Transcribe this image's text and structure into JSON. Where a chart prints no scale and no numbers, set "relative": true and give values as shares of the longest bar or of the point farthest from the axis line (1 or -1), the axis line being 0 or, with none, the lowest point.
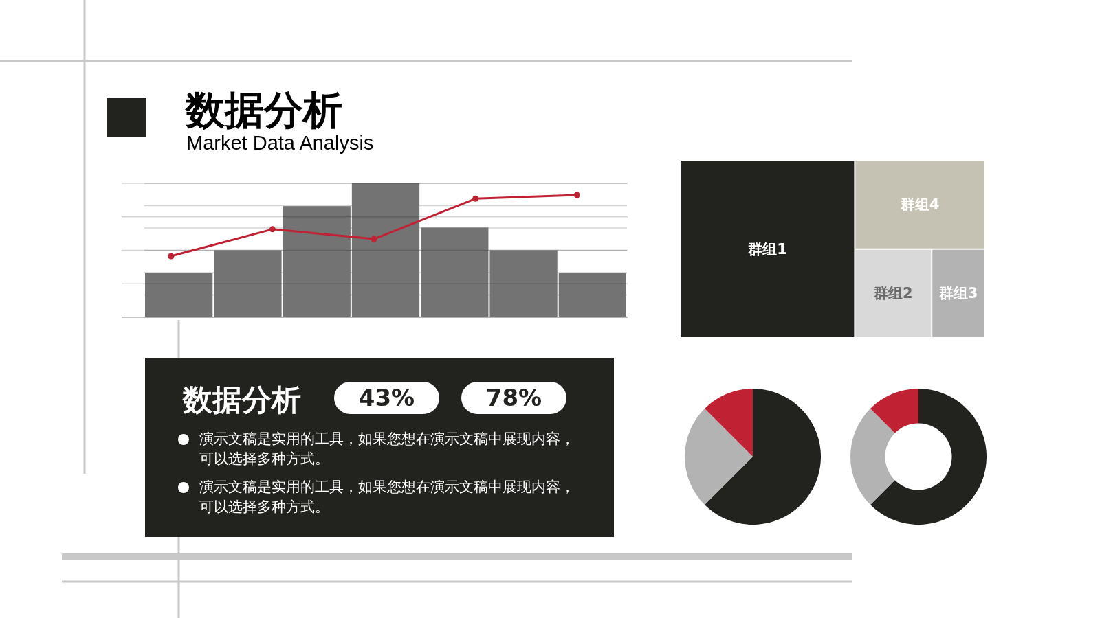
{
  "chart_data": [
    {
      "type": "bar",
      "title": "数据分析",
      "subtitle": "Market Data Analysis",
      "categories": [
        null,
        null,
        null,
        null,
        null,
        null,
        null
      ],
      "relative": true,
      "grid": true,
      "color": "#737373",
      "values": [
        0.33,
        0.5,
        0.83,
        1,
        0.67,
        0.5,
        0.33
      ]
    },
    {
      "type": "line",
      "categories": [
        null,
        null,
        null,
        null,
        null
      ],
      "relative": true,
      "grid": true,
      "marker": "circle",
      "color": "#c02233",
      "values": [
        0.5,
        0.72,
        0.64,
        0.97,
        1
      ]
    },
    {
      "type": "other",
      "categories": [
        "群组1",
        "群组2",
        "群组3",
        "群组4"
      ],
      "colors": [
        "#22221f",
        "#d9d9d9",
        "#b3b3b3",
        "#c6c2b3"
      ]
    },
    {
      "type": "other",
      "title": "数据分析",
      "annotations": [
        "43%",
        "78%",
        "演示文稿是实用的工具，如果您想在演示文稿中展现内容，可以选择多种方式。",
        "演示文稿是实用的工具，如果您想在演示文稿中展现内容，可以选择多种方式。"
      ]
    },
    {
      "type": "pie",
      "categories": [
        null,
        null,
        null
      ],
      "values": [
        62.5,
        25,
        12.5
      ],
      "colors": [
        "#22221f",
        "#b3b3b3",
        "#c02233"
      ]
    },
    {
      "type": "donut",
      "categories": [
        null,
        null,
        null
      ],
      "values": [
        62.5,
        25,
        12.5
      ],
      "colors": [
        "#22221f",
        "#b3b3b3",
        "#c02233"
      ]
    }
  ]
}
